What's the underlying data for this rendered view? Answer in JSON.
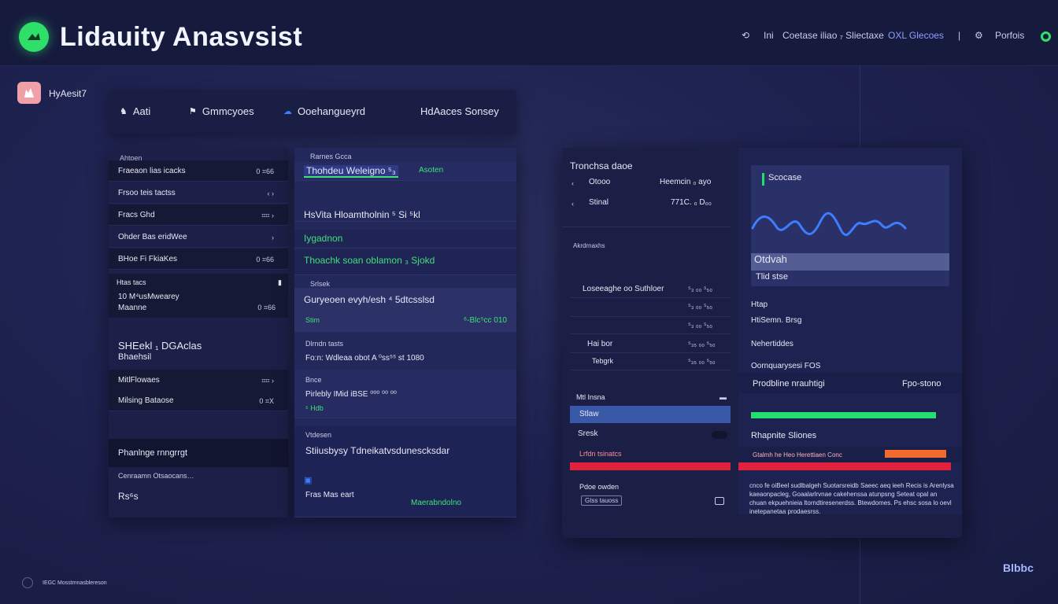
{
  "app": {
    "title": "Lidauity Anasvsist"
  },
  "topbar": {
    "items": [
      "Ini",
      "Coetase iliao ₇ Sliectaxe",
      "OXL Glecoes"
    ],
    "right_label": "Porfois",
    "accent": "#2ee06a"
  },
  "user": {
    "name": "HyAesit7"
  },
  "tabs": [
    {
      "label": "Aati",
      "icon": "dragon-icon"
    },
    {
      "label": "Gmmcyoes",
      "icon": "flag-icon"
    },
    {
      "label": "Ooehangueyrd",
      "icon": "cloud-icon",
      "active": true
    },
    {
      "label": "HdAaces Sonsey",
      "icon": ""
    }
  ],
  "left_panel": {
    "header": "Ahtoen",
    "rows": [
      {
        "label": "Fraeaon lias icacks",
        "value": "0 ⌗66"
      },
      {
        "label": "Frsoo teis tactss",
        "value": "‹ ›"
      },
      {
        "label": "Fracs Ghd",
        "value": "⌗⌗ ›"
      },
      {
        "label": "Ohder Bas eridWee",
        "value": "›"
      },
      {
        "label": "BHoe Fi FkiaKes",
        "value": "0 ⌗66"
      }
    ],
    "section_title": "Htas tacs",
    "section_lines": [
      "10 M⁴usMwearey",
      "Maanne"
    ],
    "section_value": "0 ⌗66",
    "big_lines": [
      "SHEekl ₁ DGAclas",
      "Bhaehsil"
    ],
    "rows2": [
      {
        "label": "MitlFlowaes",
        "value": "⌗⌗ ›"
      },
      {
        "label": "Milsing Bataose",
        "value": "0 ⌗X"
      }
    ],
    "footer_title": "Phanlnge rnngrrgt",
    "footer_sub": "Cenraamn Otsaocans…",
    "footer_last": "Rs⁶s"
  },
  "mid_panel": {
    "head_small": "Rarnes Gcca",
    "highlight": "Thohdeu Weleigno ⁵₃",
    "highlight_right": "Asoten",
    "line1": "HsVita Hloamtholnin ⁵ Si ⁵kl",
    "line2_label": "Iygadnon",
    "line3": "Thoachk soan oblamon ₃ Sjokd",
    "sub_small": "Srlsek",
    "line4": "Guryeoen evyh/esh ⁴ 5dtcsslsd",
    "line4_left": "Stim",
    "line4_right": "⁶-Blc⁵cc 010",
    "sub2_small": "Dlrndn tasts",
    "line5": "Fo:n: Wdleaa obot A ⁰ss⁵⁵ st 1080",
    "sub3_small": "Bnce",
    "line6": "Pirlebly IMid iBSE ⁰⁰⁰ ⁰⁰ ⁰⁰",
    "line6_sub": "⁵ Hdb",
    "sub4_small": "Vtdesen",
    "line7": "Stiiusbysy Tdneikatvsdunescksdar",
    "line8": "Fras Mas eart",
    "line8_right": "Maerabndolno"
  },
  "right_panel": {
    "title": "Tronchsa daoe",
    "rows_top": [
      {
        "label": "Otooo",
        "value": "Heemcin ₀ ayo"
      },
      {
        "label": "Stinal",
        "value": "771C. ₀ D₀₀"
      }
    ],
    "rows_mid_header": "Akrdrnaxhs",
    "rows_mid": [
      {
        "label": "Loseeaghe oo Suthloer",
        "value": "⁵₃ ₀₀ ⁵₅₀"
      },
      {
        "label": "",
        "value": "⁵₃ ₀₀ ⁵₅₀"
      },
      {
        "label": "",
        "value": "⁵₃ ₀₀ ⁵₅₀"
      },
      {
        "label": "Hai bor",
        "value": "⁵₃₅ ₀₀ ⁵₅₀"
      },
      {
        "label": "Tebgrk",
        "value": "⁵₃₅ ₀₀ ⁵₅₀"
      }
    ],
    "footer_label": "Mtl Insna",
    "footer_selected": "Stlaw",
    "footer_item2": "Sresk",
    "footer_item3": "Lrfdn tsinatcs",
    "footer_item4": "Pdoe owden",
    "footer_box": "Gtss tauoss",
    "chart_card": {
      "title": "Scocase",
      "band_label": "Otdvah",
      "below": "Tlid stse"
    },
    "side_items": [
      "Htap",
      "HtiSemn. Brsg",
      "Nehertiddes",
      "Oornquarysesi FOS"
    ],
    "green_row": {
      "label": "Prodbline nrauhtigi",
      "value": "Fpo-stono"
    },
    "progress_green": 0.94,
    "score_label": "Rhapnite Sliones",
    "progress_orange_label": "Gtalmh he Heo Herettiaen Conc",
    "progress_red": 0.95,
    "paragraph": "cnco fe oiBeel sudlbalgeh Suotarsreidb Saeec aeq ieeh Recis is Arenlysa kaeaonpacleg, Goaalarlrvnae cakehenssa atunpsng Seteat opal an chuan ekpuehnieia ltorndtiresenerdss. Btewdomes. Ps ehsc sosa lo oevl inetepanetaa prodaesrss.",
    "colors": {
      "green": "#22e070",
      "orange": "#f26a2e",
      "red": "#e0223f",
      "blue_line": "#3d7dff"
    }
  },
  "footer": {
    "text": "IEGC Mosstmnasblereson",
    "brand": "Blbbc"
  }
}
